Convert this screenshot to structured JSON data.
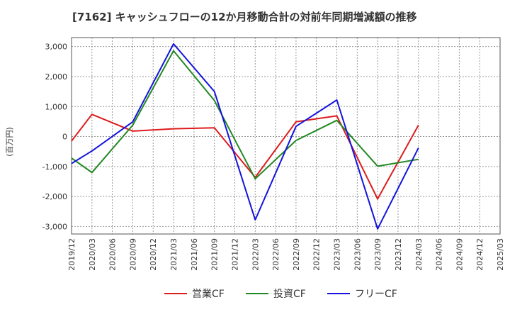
{
  "chart_data": {
    "type": "line",
    "title": "[7162]  キャッシュフローの12か月移動合計の対前年同期増減額の推移",
    "ylabel": "(百万円)",
    "ylim": [
      -3250,
      3300
    ],
    "y_ticks": [
      3000,
      2000,
      1000,
      0,
      -1000,
      -2000,
      -3000
    ],
    "y_tick_labels": [
      "3,000",
      "2,000",
      "1,000",
      "0",
      "-1,000",
      "-2,000",
      "-3,000"
    ],
    "x_ticks": [
      "2019/12",
      "2020/03",
      "2020/06",
      "2020/09",
      "2020/12",
      "2021/03",
      "2021/06",
      "2021/09",
      "2021/12",
      "2022/03",
      "2022/06",
      "2022/09",
      "2022/12",
      "2023/03",
      "2023/06",
      "2023/09",
      "2023/12",
      "2024/03",
      "2024/06",
      "2024/09",
      "2024/12",
      "2025/03"
    ],
    "grid": true,
    "legend_position": "bottom",
    "series": [
      {
        "name": "営業CF",
        "color": "#dd1c1c",
        "points": [
          {
            "x": "2019/12",
            "y": -150
          },
          {
            "x": "2020/03",
            "y": 740
          },
          {
            "x": "2020/09",
            "y": 180
          },
          {
            "x": "2021/03",
            "y": 260
          },
          {
            "x": "2021/09",
            "y": 290
          },
          {
            "x": "2022/03",
            "y": -1360
          },
          {
            "x": "2022/09",
            "y": 490
          },
          {
            "x": "2023/03",
            "y": 690
          },
          {
            "x": "2023/09",
            "y": -2080
          },
          {
            "x": "2024/03",
            "y": 380
          }
        ]
      },
      {
        "name": "投資CF",
        "color": "#228822",
        "points": [
          {
            "x": "2019/12",
            "y": -720
          },
          {
            "x": "2020/03",
            "y": -1200
          },
          {
            "x": "2020/09",
            "y": 380
          },
          {
            "x": "2021/03",
            "y": 2860
          },
          {
            "x": "2021/09",
            "y": 1200
          },
          {
            "x": "2022/03",
            "y": -1410
          },
          {
            "x": "2022/09",
            "y": -130
          },
          {
            "x": "2023/03",
            "y": 540
          },
          {
            "x": "2023/09",
            "y": -990
          },
          {
            "x": "2024/03",
            "y": -760
          }
        ]
      },
      {
        "name": "フリーCF",
        "color": "#1414dd",
        "points": [
          {
            "x": "2019/12",
            "y": -900
          },
          {
            "x": "2020/03",
            "y": -480
          },
          {
            "x": "2020/09",
            "y": 490
          },
          {
            "x": "2021/03",
            "y": 3090
          },
          {
            "x": "2021/09",
            "y": 1500
          },
          {
            "x": "2022/03",
            "y": -2780
          },
          {
            "x": "2022/09",
            "y": 340
          },
          {
            "x": "2023/03",
            "y": 1220
          },
          {
            "x": "2023/09",
            "y": -3080
          },
          {
            "x": "2024/03",
            "y": -380
          }
        ]
      }
    ]
  }
}
